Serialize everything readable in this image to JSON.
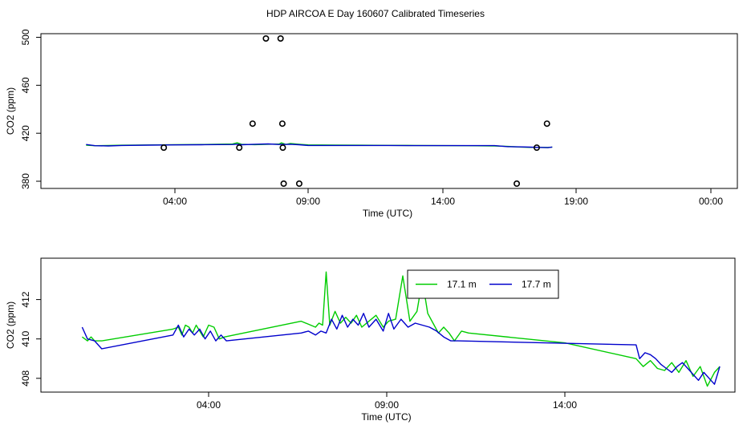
{
  "title": "HDP AIRCOA E  Day 160607  Calibrated Timeseries",
  "chart_data": [
    {
      "type": "line",
      "xlabel": "Time (UTC)",
      "ylabel": "CO2 (ppm)",
      "x_ticks": [
        "04:00",
        "09:00",
        "14:00",
        "19:00",
        "00:00"
      ],
      "y_ticks": [
        380,
        420,
        460,
        500
      ],
      "ylim": [
        374,
        503
      ],
      "xlim_hours": [
        -0.7,
        25
      ],
      "series": [
        {
          "color": "#00cc00",
          "x": [
            "00:40",
            "01:00",
            "01:30",
            "02:00",
            "03:00",
            "04:00",
            "05:00",
            "06:10",
            "06:20",
            "06:30",
            "07:00",
            "07:30",
            "07:55",
            "08:00",
            "08:10",
            "08:20",
            "08:40",
            "09:00",
            "10:00",
            "11:00",
            "12:00",
            "13:00",
            "14:00",
            "15:00",
            "16:00",
            "16:30",
            "17:00",
            "17:20",
            "17:40",
            "18:00",
            "18:10"
          ],
          "y": [
            410,
            409.6,
            409.8,
            410,
            410.2,
            410.4,
            410.6,
            411,
            412,
            410.8,
            410.5,
            410.8,
            411,
            412,
            410.6,
            411.5,
            410.8,
            410.3,
            410.1,
            410.0,
            409.9,
            409.8,
            409.7,
            409.6,
            409.4,
            409.0,
            408.5,
            408.2,
            408.2,
            408.1,
            408.5
          ]
        },
        {
          "color": "#0000cc",
          "x": [
            "00:40",
            "01:00",
            "01:30",
            "02:00",
            "03:00",
            "04:00",
            "05:00",
            "06:10",
            "06:20",
            "06:30",
            "07:00",
            "07:30",
            "07:55",
            "08:00",
            "08:10",
            "08:20",
            "08:40",
            "09:00",
            "10:00",
            "11:00",
            "12:00",
            "13:00",
            "14:00",
            "15:00",
            "16:00",
            "16:30",
            "17:00",
            "17:20",
            "17:40",
            "18:00",
            "18:10"
          ],
          "y": [
            410.6,
            409.6,
            409.4,
            409.8,
            410.1,
            410.3,
            410.4,
            410.6,
            410.9,
            410.4,
            410.8,
            411.1,
            410.6,
            410.8,
            410.7,
            410.8,
            410.4,
            409.8,
            409.8,
            409.8,
            409.8,
            409.7,
            409.7,
            409.7,
            409.7,
            408.8,
            408.6,
            408.4,
            408.2,
            408.0,
            408.5
          ]
        }
      ],
      "points": {
        "color": "#000000",
        "x": [
          "03:35",
          "06:25",
          "06:55",
          "07:25",
          "07:58",
          "08:02",
          "08:03",
          "08:05",
          "08:40",
          "16:50",
          "17:35",
          "17:58"
        ],
        "y": [
          408,
          408,
          428,
          499,
          499,
          428,
          408,
          378,
          378,
          378,
          408,
          428
        ]
      }
    },
    {
      "type": "line",
      "xlabel": "Time (UTC)",
      "ylabel": "CO2 (ppm)",
      "x_ticks": [
        "04:00",
        "09:00",
        "14:00"
      ],
      "y_ticks": [
        408,
        410,
        412
      ],
      "ylim": [
        407.3,
        414.1
      ],
      "xlim_hours": [
        -0.5,
        18.5
      ],
      "legend": {
        "position": "top-right-of-center",
        "entries": [
          "17.1 m",
          "17.7 m"
        ]
      },
      "series": [
        {
          "name": "17.1 m",
          "color": "#00cc00",
          "x": [
            0.45,
            0.55,
            0.65,
            0.75,
            0.85,
            0.95,
            3.0,
            3.25,
            3.35,
            3.45,
            3.55,
            3.7,
            3.85,
            4.0,
            4.15,
            4.3,
            4.45,
            4.55,
            6.7,
            7.15,
            7.25,
            7.35,
            7.45,
            7.55,
            7.65,
            7.75,
            7.85,
            7.95,
            8.05,
            8.15,
            8.25,
            8.35,
            8.45,
            8.55,
            8.65,
            8.75,
            8.85,
            8.95,
            9.1,
            9.3,
            9.5,
            9.7,
            9.9,
            10.1,
            10.3,
            10.5,
            10.7,
            12.0,
            16.0,
            16.1,
            16.3,
            16.5,
            16.7,
            16.9,
            17.1,
            17.3,
            17.5,
            17.7,
            17.9,
            18.1,
            18.3
          ],
          "y": [
            410.2,
            410.0,
            410.2,
            409.9,
            409.8,
            409.9,
            410.5,
            410.6,
            410.2,
            410.7,
            410.4,
            410.6,
            410.3,
            410.5,
            410.1,
            410.6,
            410.0,
            410.1,
            410.9,
            410.7,
            410.8,
            410.6,
            410.7,
            410.7,
            413.2,
            410.9,
            411.4,
            411.0,
            410.9,
            411.4,
            411.1,
            410.8,
            411.3,
            410.8,
            410.5,
            410.8,
            410.7,
            413.0,
            410.8,
            411.2,
            410.6,
            410.8,
            411.0,
            413.0,
            411.6,
            410.5,
            410.5,
            410.4,
            409.8,
            409.5,
            409.6,
            409.0,
            408.4,
            408.7,
            408.9,
            409.2,
            408.4,
            409.1,
            408.2,
            408.8,
            408.9
          ],
          "dense_x": [
            0.45,
            0.6,
            0.7,
            0.8,
            1.0,
            3.0,
            3.15,
            3.25,
            3.35,
            3.45,
            3.55,
            3.65,
            3.75,
            3.85,
            4.0,
            4.15,
            4.3,
            4.45,
            6.6,
            7.0,
            7.1,
            7.2,
            7.3,
            7.4,
            7.55,
            7.7,
            7.85,
            8.0,
            8.15,
            8.3,
            8.5,
            8.7,
            8.9,
            9.05,
            9.25,
            9.45,
            9.65,
            9.85,
            10.0,
            10.15,
            10.3,
            10.45,
            10.6,
            10.75,
            10.9,
            11.1,
            11.3,
            14.0,
            16.0,
            16.2,
            16.4,
            16.6,
            16.8,
            17.0,
            17.2,
            17.4,
            17.6,
            17.8,
            18.0,
            18.2,
            18.35
          ],
          "dense_y": [
            410.1,
            409.9,
            410.1,
            409.9,
            409.9,
            410.5,
            410.6,
            410.2,
            410.7,
            410.6,
            410.3,
            410.7,
            410.4,
            410.1,
            410.7,
            410.6,
            410.0,
            410.1,
            410.9,
            410.6,
            410.8,
            410.7,
            413.4,
            410.7,
            411.4,
            410.8,
            411.1,
            410.8,
            411.2,
            410.6,
            410.9,
            411.2,
            410.6,
            410.9,
            411.0,
            413.2,
            410.9,
            411.4,
            413.0,
            411.3,
            410.8,
            410.3,
            410.6,
            410.3,
            409.9,
            410.4,
            410.3,
            409.8,
            409.0,
            408.6,
            408.9,
            408.5,
            408.4,
            408.8,
            408.3,
            408.9,
            408.1,
            408.6,
            407.6,
            408.3,
            408.6
          ]
        },
        {
          "name": "17.7 m",
          "color": "#0000cc",
          "x": [
            0.45,
            0.6,
            0.8,
            1.0,
            3.0,
            3.15,
            3.3,
            3.45,
            3.6,
            3.75,
            3.9,
            4.05,
            4.2,
            4.35,
            4.5,
            6.6,
            6.8,
            7.0,
            7.15,
            7.3,
            7.45,
            7.6,
            7.75,
            7.9,
            8.05,
            8.2,
            8.35,
            8.5,
            8.7,
            8.9,
            9.05,
            9.2,
            9.4,
            9.6,
            9.8,
            10.0,
            10.2,
            10.4,
            10.6,
            10.8,
            11.0,
            16.0,
            16.1,
            16.25,
            16.4,
            16.55,
            16.7,
            16.85,
            17.0,
            17.15,
            17.3,
            17.45,
            17.6,
            17.75,
            17.9,
            18.05,
            18.2,
            18.35
          ],
          "y": [
            410.6,
            410.0,
            409.9,
            409.5,
            410.2,
            410.7,
            410.1,
            410.5,
            410.2,
            410.5,
            410.0,
            410.4,
            409.9,
            410.2,
            409.9,
            410.3,
            410.4,
            410.2,
            410.4,
            410.3,
            411.0,
            410.5,
            411.2,
            410.6,
            411.0,
            410.7,
            411.3,
            410.6,
            411.0,
            410.4,
            411.3,
            410.5,
            411.0,
            410.6,
            410.8,
            410.7,
            410.6,
            410.4,
            410.1,
            409.9,
            409.9,
            409.7,
            409.0,
            409.3,
            409.2,
            409.0,
            408.7,
            408.5,
            408.3,
            408.6,
            408.8,
            408.5,
            408.2,
            407.9,
            408.3,
            408.0,
            407.7,
            408.6
          ]
        }
      ]
    }
  ]
}
